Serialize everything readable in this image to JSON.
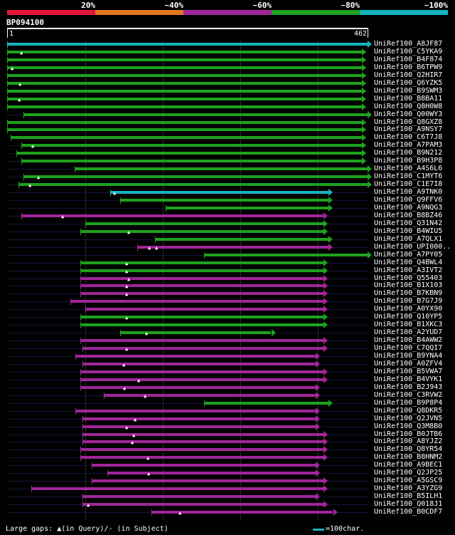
{
  "scale": {
    "labels": [
      "20%",
      "~40%",
      "~60%",
      "~80%",
      "~100%"
    ],
    "colors": [
      "#e4163a",
      "#e5771f",
      "#a0269a",
      "#1ea21e",
      "#14b4be"
    ]
  },
  "query": {
    "id": "BP094100",
    "start": "1",
    "end": "462",
    "length": 462
  },
  "colors": {
    "cyan": "#14b4be",
    "green": "#1ea21e",
    "purple": "#a0269a"
  },
  "hits": [
    {
      "label": "UniRef100_A8JF87",
      "c": "cyan",
      "s": 1,
      "e": 462,
      "ts": 1,
      "gaps": []
    },
    {
      "label": "UniRef100_C5YKA9",
      "c": "green",
      "s": 1,
      "e": 455,
      "ts": 1,
      "gaps": [
        20
      ]
    },
    {
      "label": "UniRef100_B4F874",
      "c": "green",
      "s": 1,
      "e": 455,
      "ts": 1,
      "gaps": []
    },
    {
      "label": "UniRef100_B6TPW9",
      "c": "green",
      "s": 1,
      "e": 455,
      "ts": 1,
      "gaps": [
        8
      ]
    },
    {
      "label": "UniRef100_Q2HIR7",
      "c": "green",
      "s": 1,
      "e": 455,
      "ts": 1,
      "gaps": []
    },
    {
      "label": "UniRef100_Q6YZK5",
      "c": "green",
      "s": 1,
      "e": 455,
      "ts": 1,
      "gaps": [
        18
      ]
    },
    {
      "label": "UniRef100_B9SWM3",
      "c": "green",
      "s": 1,
      "e": 455,
      "ts": 1,
      "gaps": []
    },
    {
      "label": "UniRef100_B8BA11",
      "c": "green",
      "s": 1,
      "e": 455,
      "ts": 1,
      "gaps": [
        17
      ]
    },
    {
      "label": "UniRef100_Q8H0W8",
      "c": "green",
      "s": 1,
      "e": 455,
      "ts": 1,
      "gaps": []
    },
    {
      "label": "UniRef100_Q00WY3",
      "c": "green",
      "s": 22,
      "e": 462,
      "ts": 22,
      "gaps": []
    },
    {
      "label": "UniRef100_Q8GXZ8",
      "c": "green",
      "s": 1,
      "e": 455,
      "ts": 1,
      "gaps": []
    },
    {
      "label": "UniRef100_A9NSY7",
      "c": "green",
      "s": 1,
      "e": 455,
      "ts": 1,
      "gaps": []
    },
    {
      "label": "UniRef100_C6T7J8",
      "c": "green",
      "s": 6,
      "e": 455,
      "ts": 6,
      "gaps": []
    },
    {
      "label": "UniRef100_A7PAM3",
      "c": "green",
      "s": 19,
      "e": 455,
      "ts": 19,
      "gaps": [
        35
      ]
    },
    {
      "label": "UniRef100_B9N212",
      "c": "green",
      "s": 13,
      "e": 455,
      "ts": 13,
      "gaps": []
    },
    {
      "label": "UniRef100_B9H3P8",
      "c": "green",
      "s": 19,
      "e": 455,
      "ts": 19,
      "gaps": []
    },
    {
      "label": "UniRef100_A4S6L6",
      "c": "green",
      "s": 87,
      "e": 462,
      "ts": 87,
      "gaps": []
    },
    {
      "label": "UniRef100_C1MYT6",
      "c": "green",
      "s": 22,
      "e": 462,
      "ts": 22,
      "gaps": [
        42
      ]
    },
    {
      "label": "UniRef100_C1E7I8",
      "c": "green",
      "s": 16,
      "e": 462,
      "ts": 16,
      "gaps": [
        31
      ]
    },
    {
      "label": "UniRef100_A9TNK0",
      "c": "cyan",
      "s": 133,
      "e": 412,
      "ts": 133,
      "gaps": [
        139
      ]
    },
    {
      "label": "UniRef100_Q9FFV6",
      "c": "green",
      "s": 146,
      "e": 412,
      "ts": 146,
      "gaps": []
    },
    {
      "label": "UniRef100_A9NQG3",
      "c": "green",
      "s": 204,
      "e": 412,
      "ts": 204,
      "gaps": []
    },
    {
      "label": "UniRef100_B8BZ46",
      "c": "purple",
      "s": 19,
      "e": 406,
      "ts": 19,
      "gaps": [
        73
      ]
    },
    {
      "label": "UniRef100_Q31N42",
      "c": "green",
      "s": 101,
      "e": 406,
      "ts": 101,
      "gaps": []
    },
    {
      "label": "UniRef100_B4WIU5",
      "c": "green",
      "s": 95,
      "e": 406,
      "ts": 95,
      "gaps": [
        157
      ]
    },
    {
      "label": "UniRef100_A7QLX1",
      "c": "green",
      "s": 190,
      "e": 412,
      "ts": 190,
      "gaps": []
    },
    {
      "label": "UniRef100_UPI000..",
      "c": "purple",
      "s": 167,
      "e": 412,
      "ts": 167,
      "gaps": [
        184,
        193
      ]
    },
    {
      "label": "UniRef100_A7PY05",
      "c": "green",
      "s": 253,
      "e": 462,
      "ts": 253,
      "gaps": []
    },
    {
      "label": "UniRef100_Q4BWL4",
      "c": "green",
      "s": 95,
      "e": 406,
      "ts": 95,
      "gaps": [
        155
      ]
    },
    {
      "label": "UniRef100_A3IVT2",
      "c": "green",
      "s": 95,
      "e": 406,
      "ts": 95,
      "gaps": [
        155
      ]
    },
    {
      "label": "UniRef100_Q55403",
      "c": "purple",
      "s": 95,
      "e": 406,
      "ts": 95,
      "gaps": [
        157
      ]
    },
    {
      "label": "UniRef100_B1X103",
      "c": "purple",
      "s": 95,
      "e": 406,
      "ts": 95,
      "gaps": [
        155
      ]
    },
    {
      "label": "UniRef100_B7KBN9",
      "c": "purple",
      "s": 95,
      "e": 406,
      "ts": 95,
      "gaps": [
        155
      ]
    },
    {
      "label": "UniRef100_B7G7J9",
      "c": "purple",
      "s": 82,
      "e": 406,
      "ts": 82,
      "gaps": []
    },
    {
      "label": "UniRef100_A0YX90",
      "c": "purple",
      "s": 101,
      "e": 406,
      "ts": 101,
      "gaps": []
    },
    {
      "label": "UniRef100_Q10YP5",
      "c": "green",
      "s": 95,
      "e": 406,
      "ts": 95,
      "gaps": [
        155
      ]
    },
    {
      "label": "UniRef100_B1XKC3",
      "c": "green",
      "s": 95,
      "e": 406,
      "ts": 95,
      "gaps": []
    },
    {
      "label": "UniRef100_A2YUD7",
      "c": "green",
      "s": 146,
      "e": 339,
      "ts": 146,
      "gaps": [
        180
      ]
    },
    {
      "label": "UniRef100_B4AWW2",
      "c": "purple",
      "s": 95,
      "e": 406,
      "ts": 95,
      "gaps": []
    },
    {
      "label": "UniRef100_C7QQI7",
      "c": "purple",
      "s": 97,
      "e": 406,
      "ts": 97,
      "gaps": [
        155
      ]
    },
    {
      "label": "UniRef100_B9YNA4",
      "c": "purple",
      "s": 88,
      "e": 396,
      "ts": 88,
      "gaps": []
    },
    {
      "label": "UniRef100_A0ZFV4",
      "c": "purple",
      "s": 97,
      "e": 396,
      "ts": 97,
      "gaps": [
        151
      ]
    },
    {
      "label": "UniRef100_B5VWA7",
      "c": "purple",
      "s": 95,
      "e": 406,
      "ts": 95,
      "gaps": []
    },
    {
      "label": "UniRef100_B4VYK1",
      "c": "purple",
      "s": 95,
      "e": 406,
      "ts": 95,
      "gaps": [
        170
      ]
    },
    {
      "label": "UniRef100_B2J943",
      "c": "purple",
      "s": 95,
      "e": 396,
      "ts": 95,
      "gaps": [
        152
      ]
    },
    {
      "label": "UniRef100_C3RVW2",
      "c": "purple",
      "s": 125,
      "e": 396,
      "ts": 125,
      "gaps": [
        178
      ]
    },
    {
      "label": "UniRef100_B9P8P4",
      "c": "green",
      "s": 253,
      "e": 412,
      "ts": 253,
      "gaps": []
    },
    {
      "label": "UniRef100_Q8DKR5",
      "c": "purple",
      "s": 88,
      "e": 396,
      "ts": 88,
      "gaps": []
    },
    {
      "label": "UniRef100_Q2JVN5",
      "c": "purple",
      "s": 97,
      "e": 396,
      "ts": 97,
      "gaps": [
        166
      ]
    },
    {
      "label": "UniRef100_Q3M8B0",
      "c": "purple",
      "s": 97,
      "e": 396,
      "ts": 97,
      "gaps": [
        155
      ]
    },
    {
      "label": "UniRef100_B0JTB6",
      "c": "purple",
      "s": 97,
      "e": 406,
      "ts": 97,
      "gaps": [
        164
      ]
    },
    {
      "label": "UniRef100_A8YJZ2",
      "c": "purple",
      "s": 97,
      "e": 406,
      "ts": 97,
      "gaps": [
        162
      ]
    },
    {
      "label": "UniRef100_Q8YR54",
      "c": "purple",
      "s": 95,
      "e": 406,
      "ts": 95,
      "gaps": []
    },
    {
      "label": "UniRef100_B8HNM2",
      "c": "purple",
      "s": 95,
      "e": 406,
      "ts": 95,
      "gaps": [
        182
      ]
    },
    {
      "label": "UniRef100_A9BEC1",
      "c": "purple",
      "s": 109,
      "e": 396,
      "ts": 109,
      "gaps": []
    },
    {
      "label": "UniRef100_Q2JP25",
      "c": "purple",
      "s": 129,
      "e": 396,
      "ts": 129,
      "gaps": [
        183
      ]
    },
    {
      "label": "UniRef100_A5GSC9",
      "c": "purple",
      "s": 109,
      "e": 406,
      "ts": 109,
      "gaps": []
    },
    {
      "label": "UniRef100_A3YZG9",
      "c": "purple",
      "s": 32,
      "e": 406,
      "ts": 32,
      "gaps": []
    },
    {
      "label": "UniRef100_B5ILH1",
      "c": "purple",
      "s": 97,
      "e": 396,
      "ts": 97,
      "gaps": []
    },
    {
      "label": "UniRef100_Q018J1",
      "c": "purple",
      "s": 97,
      "e": 406,
      "ts": 97,
      "gaps": [
        106
      ]
    },
    {
      "label": "UniRef100_B0CDF7",
      "c": "purple",
      "s": 186,
      "e": 418,
      "ts": 186,
      "gaps": [
        223
      ]
    }
  ],
  "footer": {
    "gaps_text": "Large gaps: ▲(in Query)/- (in Subject)",
    "scale_text": "=100char."
  }
}
